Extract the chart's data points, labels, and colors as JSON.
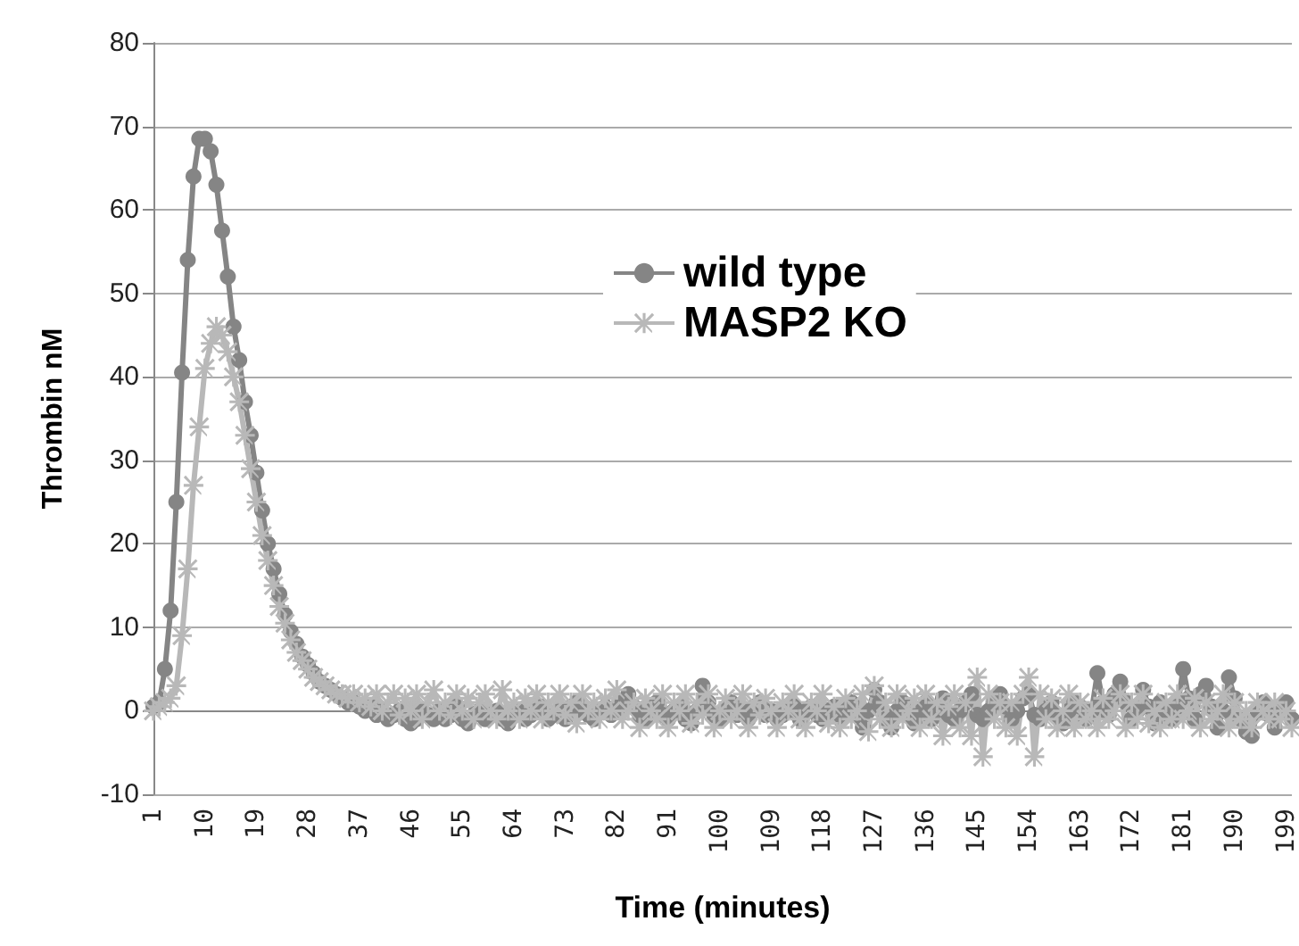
{
  "chart_data": {
    "type": "line",
    "xlabel": "Time (minutes)",
    "ylabel": "Thrombin nM",
    "categories": [
      "1",
      null,
      null,
      null,
      null,
      null,
      null,
      null,
      null,
      "10",
      null,
      null,
      null,
      null,
      null,
      null,
      null,
      null,
      "19",
      null,
      null,
      null,
      null,
      null,
      null,
      null,
      null,
      "28",
      null,
      null,
      null,
      null,
      null,
      null,
      null,
      null,
      "37",
      null,
      null,
      null,
      null,
      null,
      null,
      null,
      null,
      "46",
      null,
      null,
      null,
      null,
      null,
      null,
      null,
      null,
      "55",
      null,
      null,
      null,
      null,
      null,
      null,
      null,
      null,
      "64",
      null,
      null,
      null,
      null,
      null,
      null,
      null,
      null,
      "73",
      null,
      null,
      null,
      null,
      null,
      null,
      null,
      null,
      "82",
      null,
      null,
      null,
      null,
      null,
      null,
      null,
      null,
      "91",
      null,
      null,
      null,
      null,
      null,
      null,
      null,
      null,
      "100",
      null,
      null,
      null,
      null,
      null,
      null,
      null,
      null,
      "109",
      null,
      null,
      null,
      null,
      null,
      null,
      null,
      null,
      "118",
      null,
      null,
      null,
      null,
      null,
      null,
      null,
      null,
      "127",
      null,
      null,
      null,
      null,
      null,
      null,
      null,
      null,
      "136",
      null,
      null,
      null,
      null,
      null,
      null,
      null,
      null,
      "145",
      null,
      null,
      null,
      null,
      null,
      null,
      null,
      null,
      "154",
      null,
      null,
      null,
      null,
      null,
      null,
      null,
      null,
      "163",
      null,
      null,
      null,
      null,
      null,
      null,
      null,
      null,
      "172",
      null,
      null,
      null,
      null,
      null,
      null,
      null,
      null,
      "181",
      null,
      null,
      null,
      null,
      null,
      null,
      null,
      null,
      "190",
      null,
      null,
      null,
      null,
      null,
      null,
      null,
      null,
      "199",
      null
    ],
    "ylim": [
      -10,
      80
    ],
    "yticks": [
      -10,
      0,
      10,
      20,
      30,
      40,
      50,
      60,
      70,
      80
    ],
    "grid": "y",
    "legend": "top right",
    "series": [
      {
        "name": "wild type",
        "color": "#858585",
        "marker": "circle",
        "values": [
          0.5,
          1,
          5,
          12,
          25,
          40.5,
          54,
          64,
          68.5,
          68.5,
          67,
          63,
          57.5,
          52,
          46,
          42,
          37,
          33,
          28.5,
          24,
          20,
          17,
          14,
          11.5,
          9.5,
          8,
          6.5,
          5.5,
          4.5,
          3.5,
          3,
          2.5,
          2,
          1.5,
          1,
          1,
          0.5,
          0,
          0.5,
          -0.5,
          0,
          -1,
          -0.5,
          0,
          -1,
          -1.5,
          -1,
          0,
          -0.5,
          -1,
          0,
          -1,
          -0.5,
          0.5,
          -1,
          -1.5,
          -0.5,
          0,
          -1,
          -0.5,
          0,
          -1,
          -1.5,
          -0.5,
          0,
          -1,
          -0.5,
          0,
          0.5,
          -1,
          -0.5,
          0,
          -1,
          0.5,
          1,
          0,
          -0.5,
          -1,
          0,
          0.5,
          -0.5,
          0,
          1,
          2,
          0.5,
          -0.5,
          -1,
          0,
          1,
          -0.5,
          -1,
          0,
          0.5,
          -1,
          -1.5,
          0,
          3,
          1,
          -0.5,
          -1,
          0,
          1,
          -0.5,
          0,
          -1,
          0.5,
          1,
          -0.5,
          0,
          -1,
          -0.5,
          0,
          0.5,
          -1,
          0,
          0.5,
          -0.5,
          -1,
          0,
          0.5,
          -1,
          0,
          1,
          -0.5,
          -2,
          0,
          2.5,
          1,
          -1,
          -2,
          0,
          1,
          -0.5,
          -1.5,
          0,
          1,
          -1,
          0,
          1.5,
          -0.5,
          -1,
          0,
          1,
          2,
          -0.5,
          -1,
          0,
          1,
          2,
          0.5,
          -1,
          0,
          1.5,
          2,
          -0.5,
          -1,
          0,
          1,
          -0.5,
          -1.5,
          0,
          1,
          0.5,
          -1,
          0,
          4.5,
          1,
          -0.5,
          2,
          3.5,
          1,
          -1,
          0,
          2.5,
          0.5,
          -1.5,
          1,
          0,
          -1,
          0.5,
          5,
          1.5,
          -1,
          2,
          3,
          0.5,
          -2,
          0,
          4,
          1.5,
          -1,
          -2.5,
          -3,
          0,
          1,
          -0.5,
          -2,
          0,
          1,
          -1
        ]
      },
      {
        "name": "MASP2 KO",
        "color": "#b8b8b8",
        "marker": "cross",
        "values": [
          0,
          0.5,
          1,
          1.5,
          3,
          9,
          17,
          27,
          34,
          41,
          44,
          46,
          45,
          43,
          40,
          37,
          33,
          29,
          25,
          21,
          18,
          15,
          12.5,
          10.5,
          8.5,
          7,
          6,
          5,
          4,
          3.5,
          3,
          2.5,
          2,
          2,
          1.5,
          2,
          1,
          1.5,
          0.5,
          2,
          0,
          1,
          2,
          -0.5,
          1.5,
          0,
          2,
          -1,
          1,
          2.5,
          0,
          1,
          -0.5,
          2,
          0,
          1.5,
          -1,
          1,
          2,
          0,
          -1,
          2.5,
          0,
          1,
          -1,
          1.5,
          0,
          2,
          -1,
          1,
          0,
          2,
          -0.5,
          1,
          -1.5,
          2,
          0,
          1,
          -1,
          1.5,
          0,
          2.5,
          -1,
          0,
          1,
          -2,
          1.5,
          0,
          -1,
          2,
          -2,
          1,
          0,
          2,
          -1.5,
          1,
          -0.5,
          2,
          -2,
          0,
          1.5,
          -1,
          0,
          2,
          -2,
          1,
          -0.5,
          1.5,
          0,
          -2,
          1,
          0,
          2,
          -1,
          -2,
          1,
          0,
          2,
          -1.5,
          0.5,
          -2,
          1.5,
          -1,
          0,
          2,
          -2.5,
          3,
          -1,
          1,
          -2,
          2,
          -1,
          0,
          1.5,
          -2,
          2,
          -1,
          1,
          -3,
          0.5,
          2,
          -2,
          1,
          -3,
          4,
          -5.5,
          2,
          -1,
          1,
          -2,
          1,
          -3,
          2,
          4,
          -5.5,
          2,
          -1,
          1.5,
          -2,
          0,
          2,
          -2,
          1,
          -1,
          0,
          -2,
          1.5,
          -1,
          0,
          2,
          -2,
          1,
          -1,
          2,
          -1.5,
          0,
          -2,
          1,
          -1,
          2,
          -1,
          0,
          1.5,
          -2,
          1,
          -1,
          0,
          2,
          -2,
          1,
          -1,
          0,
          -2,
          1,
          0,
          -1,
          1,
          -1,
          0,
          -2
        ]
      }
    ]
  }
}
